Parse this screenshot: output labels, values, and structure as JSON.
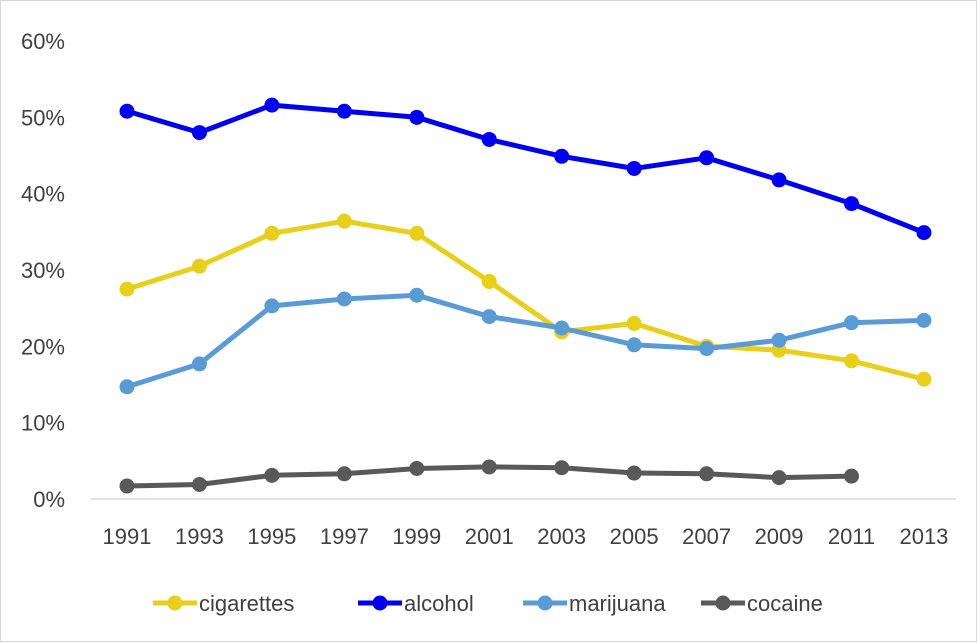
{
  "chart_data": {
    "type": "line",
    "title": "",
    "xlabel": "",
    "ylabel": "",
    "categories": [
      "1991",
      "1993",
      "1995",
      "1997",
      "1999",
      "2001",
      "2003",
      "2005",
      "2007",
      "2009",
      "2011",
      "2013"
    ],
    "y_ticks": [
      "0%",
      "10%",
      "20%",
      "30%",
      "40%",
      "50%",
      "60%"
    ],
    "ylim": [
      0,
      60
    ],
    "grid": false,
    "legend_position": "bottom",
    "series": [
      {
        "name": "cigarettes",
        "color": "#E8CF1A",
        "values": [
          27.5,
          30.5,
          34.8,
          36.4,
          34.8,
          28.5,
          21.9,
          23.0,
          20.0,
          19.5,
          18.1,
          15.7
        ]
      },
      {
        "name": "alcohol",
        "color": "#0000F0",
        "values": [
          50.8,
          48.0,
          51.6,
          50.8,
          50.0,
          47.1,
          44.9,
          43.3,
          44.7,
          41.8,
          38.7,
          34.9
        ]
      },
      {
        "name": "marijuana",
        "color": "#5B9BD5",
        "values": [
          14.7,
          17.7,
          25.3,
          26.2,
          26.7,
          23.9,
          22.4,
          20.2,
          19.7,
          20.8,
          23.1,
          23.4
        ]
      },
      {
        "name": "cocaine",
        "color": "#595959",
        "values": [
          1.7,
          1.9,
          3.1,
          3.3,
          4.0,
          4.2,
          4.1,
          3.4,
          3.3,
          2.8,
          3.0,
          null
        ]
      }
    ]
  }
}
